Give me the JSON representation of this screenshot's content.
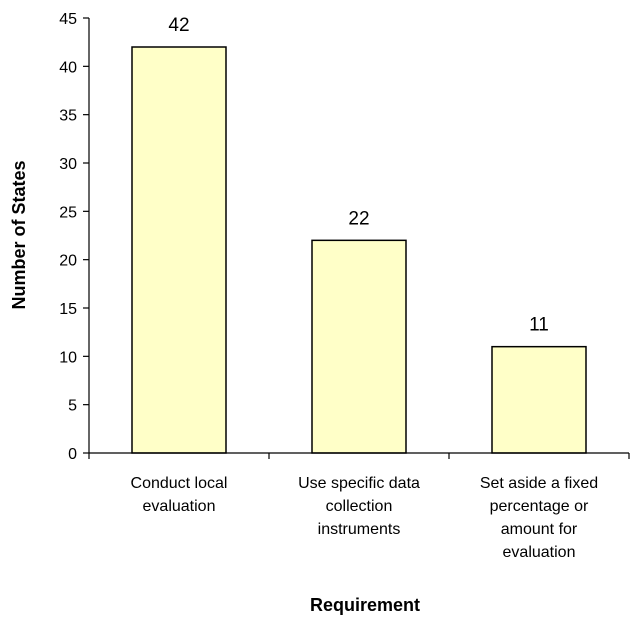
{
  "chart_data": {
    "type": "bar",
    "title": "",
    "xlabel": "Requirement",
    "ylabel": "Number of States",
    "ylim": [
      0,
      45
    ],
    "ytick_step": 5,
    "grid": false,
    "legend": "none",
    "categories": [
      [
        "Conduct local",
        "evaluation"
      ],
      [
        "Use specific data",
        "collection",
        "instruments"
      ],
      [
        "Set aside a fixed",
        "percentage or",
        "amount for",
        "evaluation"
      ]
    ],
    "values": [
      42,
      22,
      11
    ],
    "colors": {
      "bar_fill": "#FFFFC8",
      "bar_stroke": "#000000",
      "axis": "#000000"
    }
  }
}
